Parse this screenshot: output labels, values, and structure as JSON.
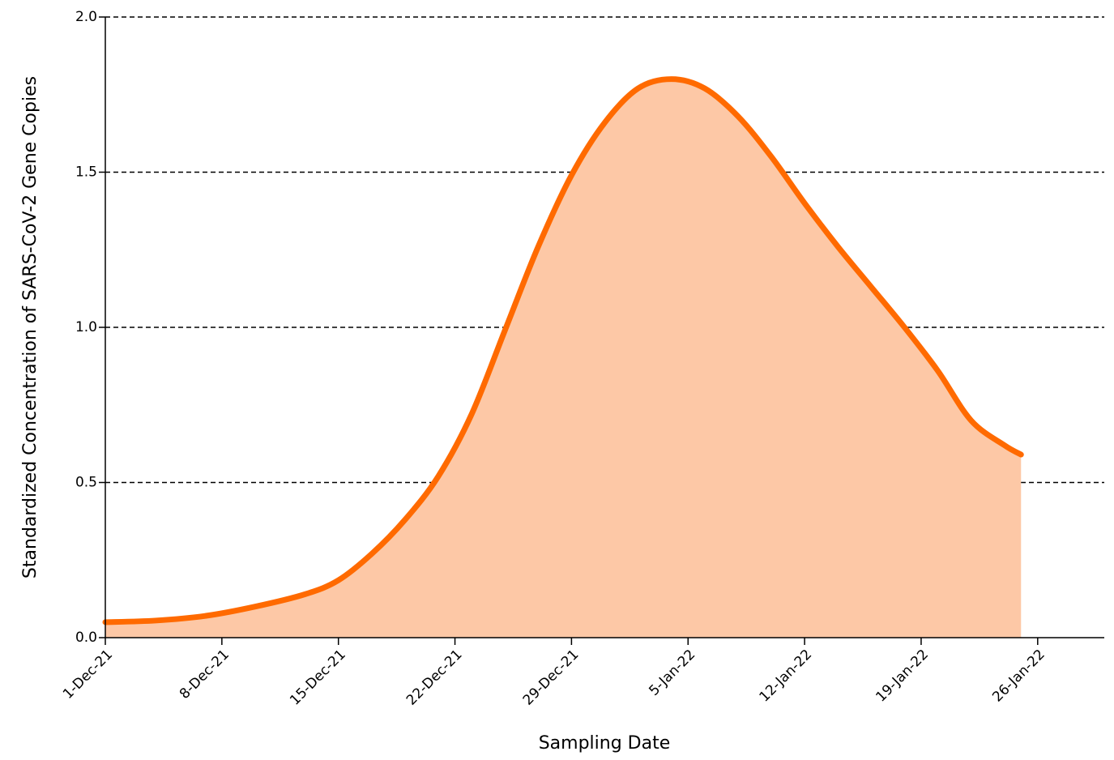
{
  "chart_data": {
    "type": "area",
    "x_label": "Sampling Date",
    "y_label": "Standardized Concentration of SARS-CoV-2 Gene Copies",
    "x": [
      "2021-12-01",
      "2021-12-04",
      "2021-12-07",
      "2021-12-10",
      "2021-12-13",
      "2021-12-15",
      "2021-12-17",
      "2021-12-19",
      "2021-12-21",
      "2021-12-23",
      "2021-12-25",
      "2021-12-27",
      "2021-12-29",
      "2021-12-31",
      "2022-01-02",
      "2022-01-04",
      "2022-01-06",
      "2022-01-08",
      "2022-01-10",
      "2022-01-12",
      "2022-01-14",
      "2022-01-16",
      "2022-01-18",
      "2022-01-20",
      "2022-01-22",
      "2022-01-24",
      "2022-01-25"
    ],
    "series": [
      {
        "color": "#ff6a00",
        "fill": "#fdc8a6",
        "values": [
          0.05,
          0.055,
          0.07,
          0.1,
          0.14,
          0.185,
          0.27,
          0.38,
          0.52,
          0.72,
          0.99,
          1.26,
          1.49,
          1.66,
          1.77,
          1.8,
          1.77,
          1.68,
          1.55,
          1.4,
          1.26,
          1.13,
          1.0,
          0.86,
          0.7,
          0.62,
          0.59
        ]
      }
    ],
    "xlim": [
      "2021-12-01",
      "2022-01-30"
    ],
    "xticks": [
      {
        "value": "2021-12-01",
        "label": "1-Dec-21"
      },
      {
        "value": "2021-12-08",
        "label": "8-Dec-21"
      },
      {
        "value": "2021-12-15",
        "label": "15-Dec-21"
      },
      {
        "value": "2021-12-22",
        "label": "22-Dec-21"
      },
      {
        "value": "2021-12-29",
        "label": "29-Dec-21"
      },
      {
        "value": "2022-01-05",
        "label": "5-Jan-22"
      },
      {
        "value": "2022-01-12",
        "label": "12-Jan-22"
      },
      {
        "value": "2022-01-19",
        "label": "19-Jan-22"
      },
      {
        "value": "2022-01-26",
        "label": "26-Jan-22"
      }
    ],
    "ylim": [
      0,
      2
    ],
    "yticks": [
      {
        "value": 0,
        "label": "0.0"
      },
      {
        "value": 0.5,
        "label": "0.5"
      },
      {
        "value": 1,
        "label": "1.0"
      },
      {
        "value": 1.5,
        "label": "1.5"
      },
      {
        "value": 2,
        "label": "2.0"
      }
    ],
    "grid": true
  }
}
